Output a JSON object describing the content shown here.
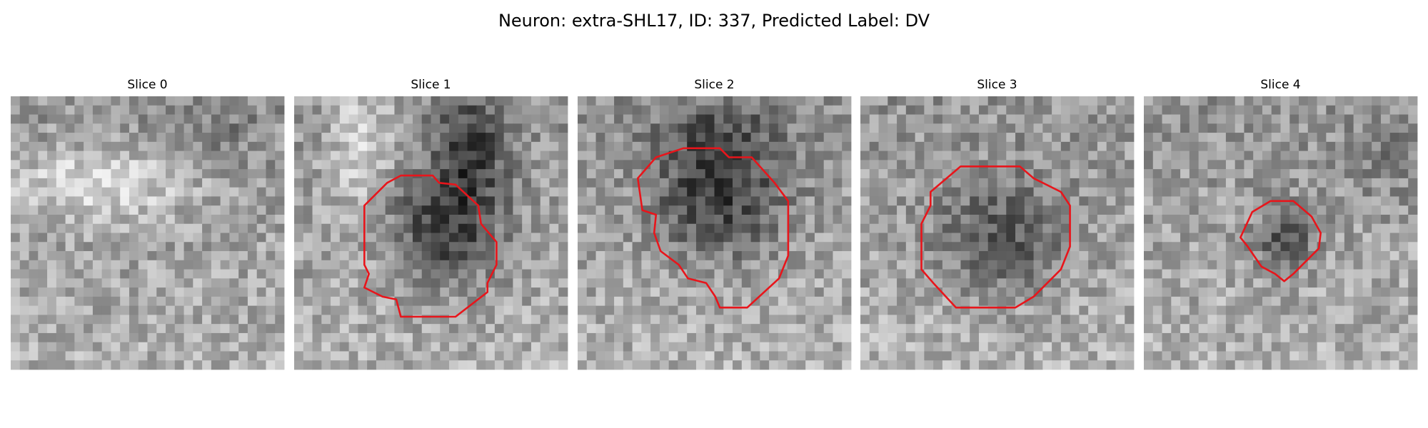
{
  "title": "Neuron: extra-SHL17, ID: 337, Predicted Label: DV",
  "panels": [
    {
      "title": "Slice 0"
    },
    {
      "title": "Slice 1"
    },
    {
      "title": "Slice 2"
    },
    {
      "title": "Slice 3"
    },
    {
      "title": "Slice 4"
    }
  ]
}
